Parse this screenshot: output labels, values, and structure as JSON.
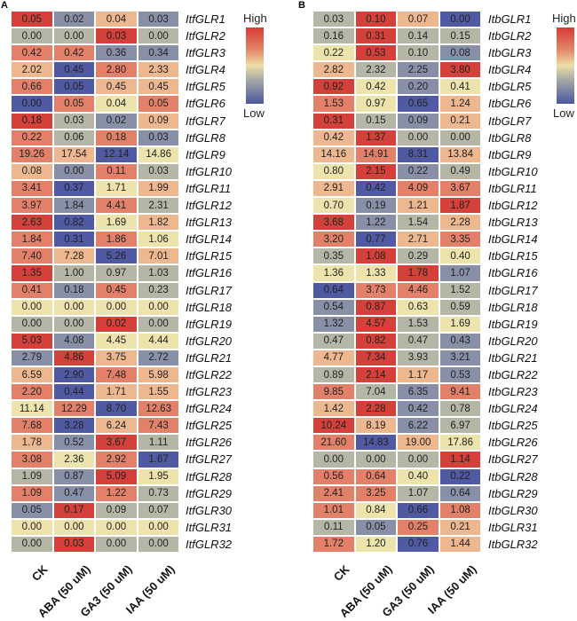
{
  "palette": {
    "R": "#d4403a",
    "r": "#e3806a",
    "o": "#edb78f",
    "y": "#ede3ad",
    "g": "#b5b6a6",
    "s": "#8890a8",
    "b": "#4f5aa2"
  },
  "chart_data": [
    {
      "type": "heatmap",
      "panel": "A",
      "legend": {
        "high": "High",
        "low": "Low",
        "placement": "top-right"
      },
      "columns": [
        "CK",
        "ABA (50 uM)",
        "GA3 (50 uM)",
        "IAA (50 uM)"
      ],
      "rows": [
        "ItfGLR1",
        "ItfGLR2",
        "ItfGLR3",
        "ItfGLR4",
        "ItfGLR5",
        "ItfGLR6",
        "ItfGLR7",
        "ItfGLR8",
        "ItfGLR9",
        "ItfGLR10",
        "ItfGLR11",
        "ItfGLR12",
        "ItfGLR13",
        "ItfGLR14",
        "ItfGLR15",
        "ItfGLR16",
        "ItfGLR17",
        "ItfGLR18",
        "ItfGLR19",
        "ItfGLR20",
        "ItfGLR21",
        "ItfGLR22",
        "ItfGLR23",
        "ItfGLR24",
        "ItfGLR25",
        "ItfGLR26",
        "ItfGLR27",
        "ItfGLR28",
        "ItfGLR29",
        "ItfGLR30",
        "ItfGLR31",
        "ItfGLR32"
      ],
      "values": [
        [
          "0.05",
          "0.02",
          "0.04",
          "0.03"
        ],
        [
          "0.00",
          "0.00",
          "0.03",
          "0.00"
        ],
        [
          "0.42",
          "0.42",
          "0.36",
          "0.34"
        ],
        [
          "2.02",
          "0.45",
          "2.80",
          "2.33"
        ],
        [
          "0.66",
          "0.05",
          "0.45",
          "0.45"
        ],
        [
          "0.00",
          "0.05",
          "0.04",
          "0.05"
        ],
        [
          "0.18",
          "0.03",
          "0.02",
          "0.09"
        ],
        [
          "0.22",
          "0.06",
          "0.18",
          "0.03"
        ],
        [
          "19.26",
          "17.54",
          "12.14",
          "14.86"
        ],
        [
          "0.08",
          "0.00",
          "0.11",
          "0.03"
        ],
        [
          "3.41",
          "0.37",
          "1.71",
          "1.99"
        ],
        [
          "3.97",
          "1.84",
          "4.41",
          "2.31"
        ],
        [
          "2.63",
          "0.82",
          "1.69",
          "1.82"
        ],
        [
          "1.84",
          "0.31",
          "1.86",
          "1.06"
        ],
        [
          "7.40",
          "7.28",
          "5.26",
          "7.01"
        ],
        [
          "1.35",
          "1.00",
          "0.97",
          "1.03"
        ],
        [
          "0.41",
          "0.18",
          "0.45",
          "0.23"
        ],
        [
          "0.00",
          "0.00",
          "0.00",
          "0.00"
        ],
        [
          "0.00",
          "0.00",
          "0.02",
          "0.00"
        ],
        [
          "5.03",
          "4.08",
          "4.45",
          "4.44"
        ],
        [
          "2.79",
          "4.86",
          "3.75",
          "2.72"
        ],
        [
          "6.59",
          "2.90",
          "7.48",
          "5.98"
        ],
        [
          "2.20",
          "0.44",
          "1.71",
          "1.55"
        ],
        [
          "11.14",
          "12.29",
          "8.70",
          "12.63"
        ],
        [
          "7.68",
          "3.28",
          "6.24",
          "7.43"
        ],
        [
          "1.78",
          "0.52",
          "3.67",
          "1.11"
        ],
        [
          "3.08",
          "2.36",
          "2.92",
          "1.67"
        ],
        [
          "1.09",
          "0.87",
          "5.09",
          "1.95"
        ],
        [
          "1.09",
          "0.47",
          "1.22",
          "0.73"
        ],
        [
          "0.05",
          "0.17",
          "0.09",
          "0.07"
        ],
        [
          "0.00",
          "0.00",
          "0.00",
          "0.00"
        ],
        [
          "0.00",
          "0.03",
          "0.00",
          "0.00"
        ]
      ],
      "color_levels": [
        "RsoS",
        "ggRg",
        "rrss",
        "obro",
        "rboo",
        "bryr",
        "Rgso",
        "rgrs",
        "roby",
        "osrg",
        "rbyo",
        "rsrg",
        "Rbyo",
        "rbry",
        "robo",
        "Rggg",
        "rsrg",
        "yyyy",
        "ggRg",
        "Rsyy",
        "sRos",
        "obro",
        "rboo",
        "yrbr",
        "rbor",
        "osRg",
        "ryrb",
        "gsRy",
        "rsrg",
        "sRgg",
        "yyyy",
        "gRgg"
      ]
    },
    {
      "type": "heatmap",
      "panel": "B",
      "legend": {
        "high": "High",
        "low": "Low",
        "placement": "top-right"
      },
      "columns": [
        "CK",
        "ABA (50 uM)",
        "GA3 (50 uM)",
        "IAA (50 uM)"
      ],
      "rows": [
        "ItbGLR1",
        "ItbGLR2",
        "ItbGLR3",
        "ItbGLR4",
        "ItbGLR5",
        "ItbGLR6",
        "ItbGLR7",
        "ItbGLR8",
        "ItbGLR9",
        "ItbGLR10",
        "ItbGLR11",
        "ItbGLR12",
        "ItbGLR13",
        "ItbGLR14",
        "ItbGLR15",
        "ItbGLR16",
        "ItbGLR17",
        "ItbGLR18",
        "ItbGLR19",
        "ItbGLR20",
        "ItbGLR21",
        "ItbGLR22",
        "ItbGLR23",
        "ItbGLR24",
        "ItbGLR25",
        "ItbGLR26",
        "ItbGLR27",
        "ItbGLR28",
        "ItbGLR29",
        "ItbGLR30",
        "ItbGLR31",
        "ItbGLR32"
      ],
      "values": [
        [
          "0.03",
          "0.10",
          "0.07",
          "0.00"
        ],
        [
          "0.16",
          "0.31",
          "0.14",
          "0.15"
        ],
        [
          "0.22",
          "0.53",
          "0.10",
          "0.08"
        ],
        [
          "2.82",
          "2.32",
          "2.25",
          "3.80"
        ],
        [
          "0.92",
          "0.42",
          "0.20",
          "0.41"
        ],
        [
          "1.53",
          "0.97",
          "0.65",
          "1.24"
        ],
        [
          "0.31",
          "0.15",
          "0.09",
          "0.21"
        ],
        [
          "0.42",
          "1.37",
          "0.00",
          "0.00"
        ],
        [
          "14.16",
          "14.91",
          "8.31",
          "13.84"
        ],
        [
          "0.80",
          "2.15",
          "0.22",
          "0.49"
        ],
        [
          "2.91",
          "0.42",
          "4.09",
          "3.67"
        ],
        [
          "0.70",
          "0.19",
          "1.21",
          "1.87"
        ],
        [
          "3.68",
          "1.22",
          "1.54",
          "2.28"
        ],
        [
          "3.20",
          "0.77",
          "2.71",
          "3.35"
        ],
        [
          "0.35",
          "1.08",
          "0.29",
          "0.40"
        ],
        [
          "1.36",
          "1.33",
          "1.78",
          "1.07"
        ],
        [
          "0.64",
          "3.73",
          "4.46",
          "1.52"
        ],
        [
          "0.54",
          "0.87",
          "0.63",
          "0.59"
        ],
        [
          "1.32",
          "4.57",
          "1.53",
          "1.69"
        ],
        [
          "0.47",
          "0.82",
          "0.47",
          "0.43"
        ],
        [
          "4.77",
          "7.34",
          "3.93",
          "3.21"
        ],
        [
          "0.89",
          "2.14",
          "1.17",
          "0.53"
        ],
        [
          "9.85",
          "7.04",
          "6.35",
          "9.41"
        ],
        [
          "1.42",
          "2.28",
          "0.42",
          "0.78"
        ],
        [
          "10.24",
          "8.19",
          "6.22",
          "6.97"
        ],
        [
          "21.60",
          "14.83",
          "19.00",
          "17.86"
        ],
        [
          "0.00",
          "0.00",
          "0.00",
          "1.14"
        ],
        [
          "0.56",
          "0.64",
          "0.40",
          "0.22"
        ],
        [
          "2.41",
          "3.25",
          "1.07",
          "0.64"
        ],
        [
          "1.01",
          "0.84",
          "0.66",
          "1.08"
        ],
        [
          "0.11",
          "0.05",
          "0.25",
          "0.21"
        ],
        [
          "1.72",
          "1.20",
          "0.76",
          "1.44"
        ]
      ],
      "color_levels": [
        "gRob",
        "gRgg",
        "yRgs",
        "ogsR",
        "Rysy",
        "rybo",
        "Rgso",
        "oRgg",
        "orbo",
        "yRsg",
        "obrr",
        "ysoR",
        "Rsgo",
        "rbor",
        "gRgy",
        "yyRs",
        "brrg",
        "sRyg",
        "sRgy",
        "gRgs",
        "oRgs",
        "gRos",
        "rgsr",
        "oRsg",
        "Rosg",
        "rboy",
        "gggR",
        "rryb",
        "rrgs",
        "rybr",
        "gsro",
        "rybo"
      ]
    }
  ]
}
